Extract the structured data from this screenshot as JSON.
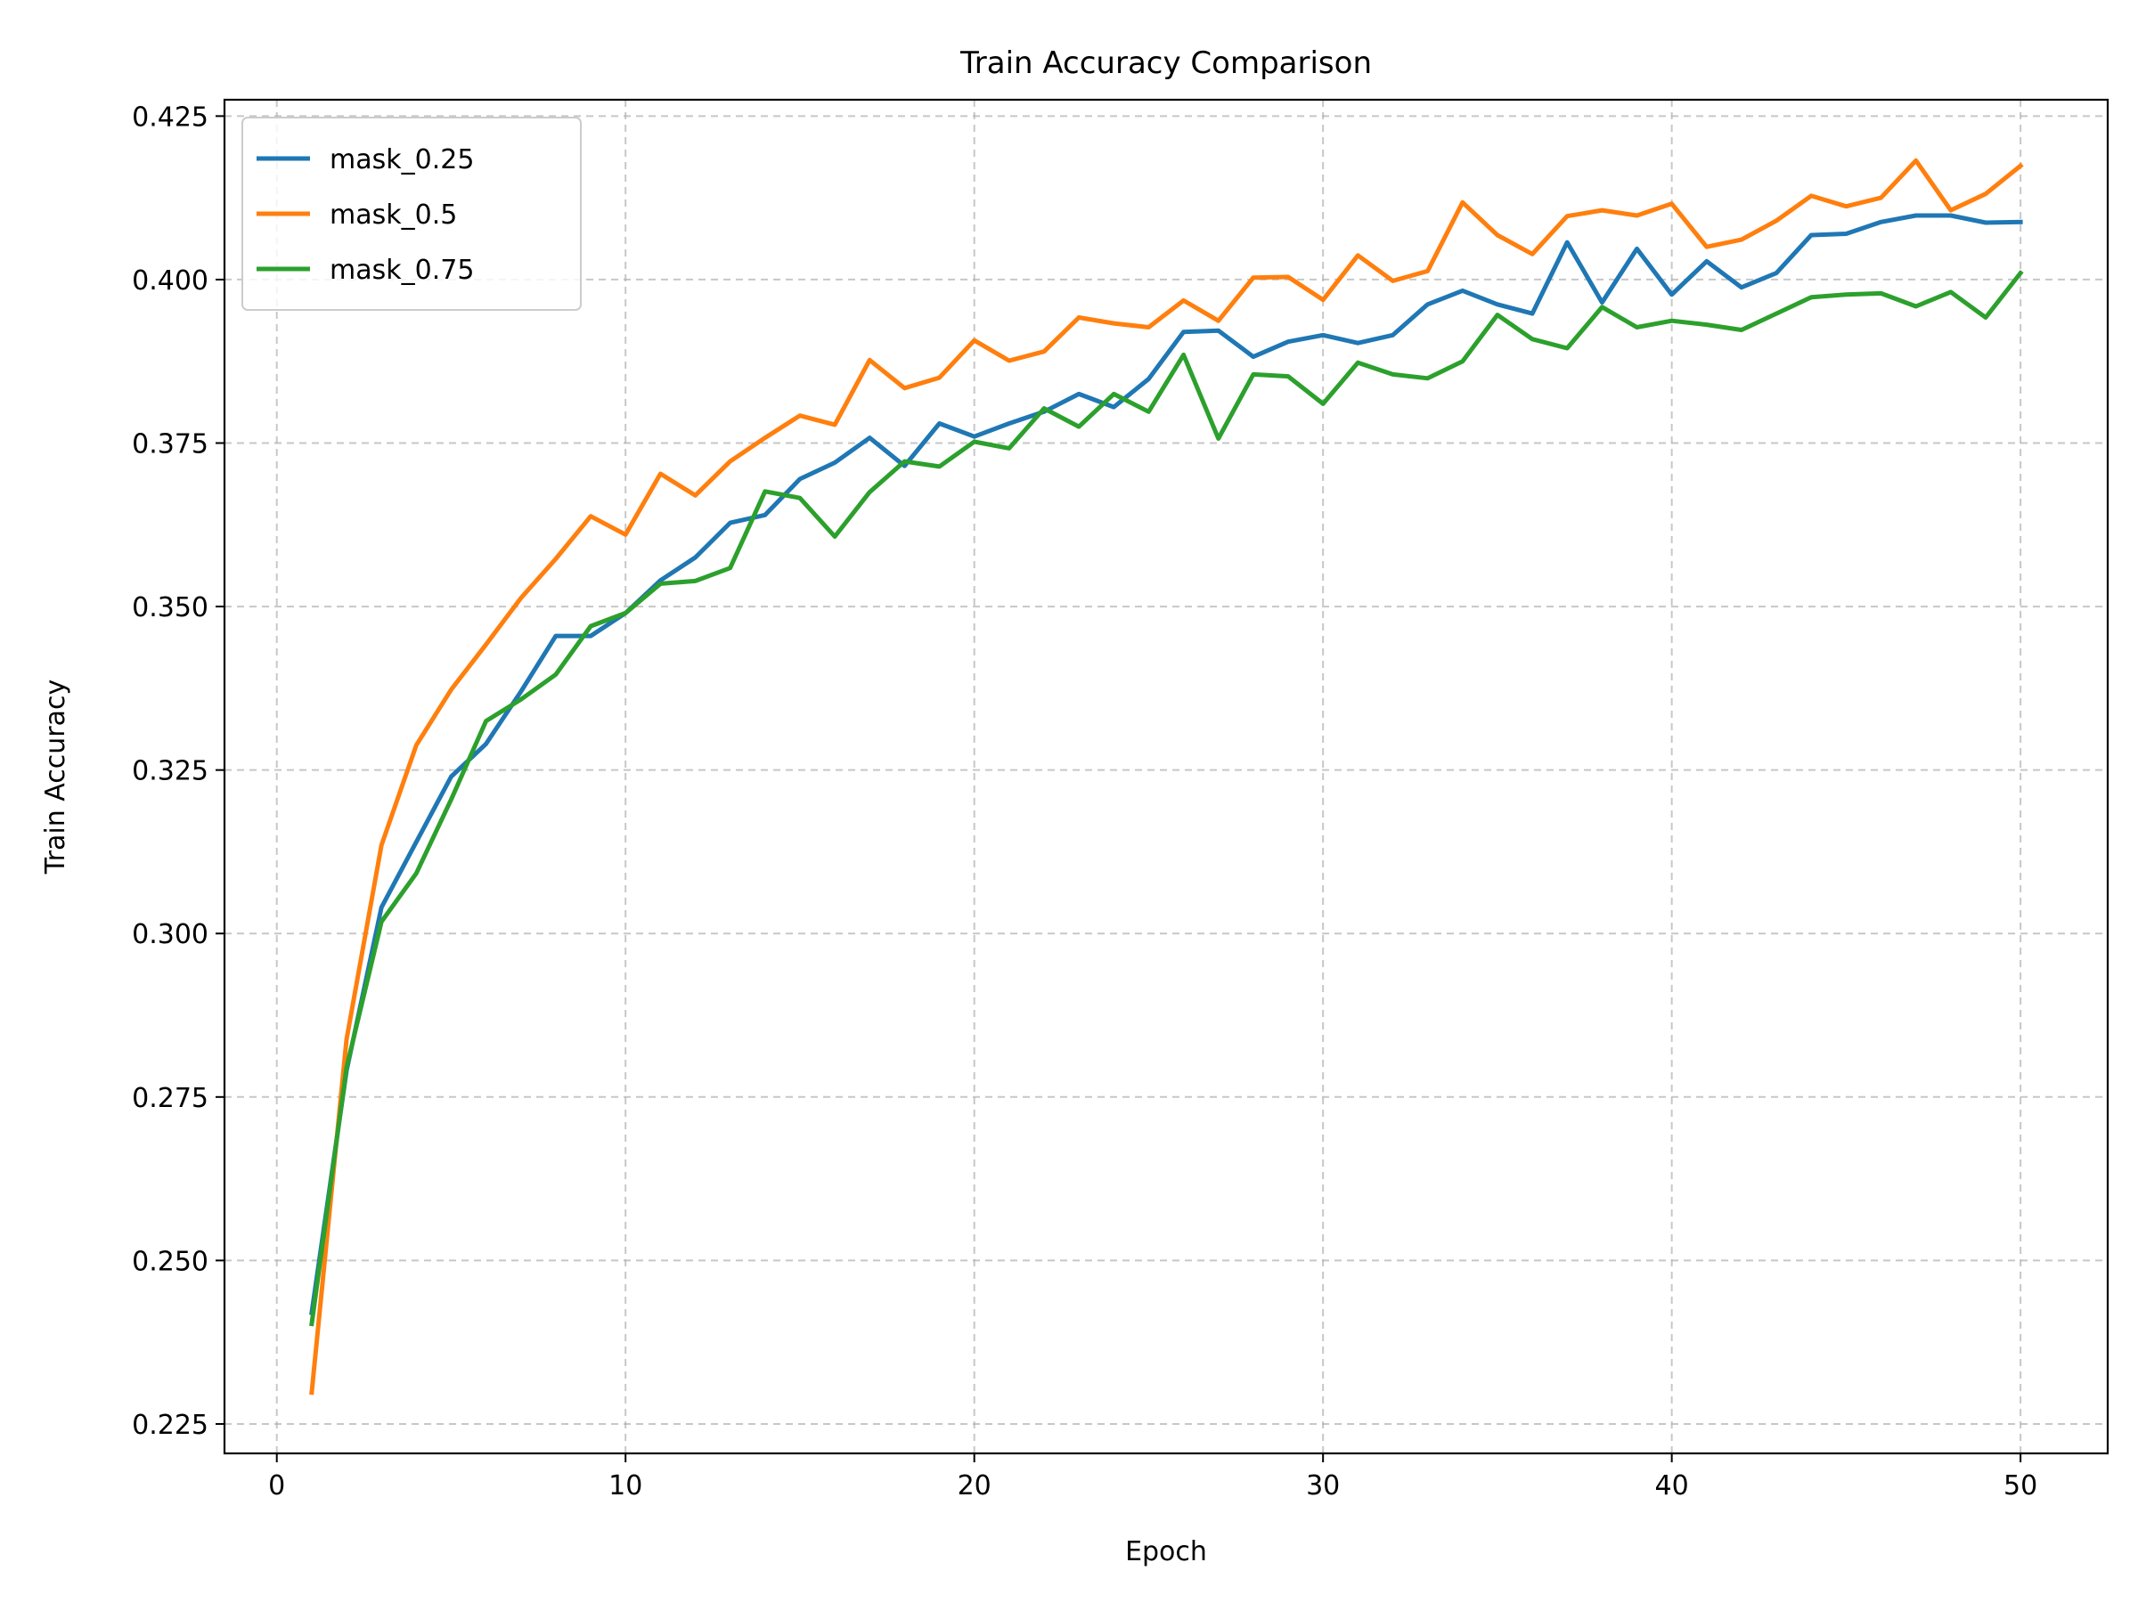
{
  "chart_data": {
    "type": "line",
    "title": "Train Accuracy Comparison",
    "xlabel": "Epoch",
    "ylabel": "Train Accuracy",
    "xlim": [
      -1.5,
      52.5
    ],
    "ylim": [
      0.2205,
      0.4275
    ],
    "xticks": [
      0,
      10,
      20,
      30,
      40,
      50
    ],
    "xtick_labels": [
      "0",
      "10",
      "20",
      "30",
      "40",
      "50"
    ],
    "yticks": [
      0.225,
      0.25,
      0.275,
      0.3,
      0.325,
      0.35,
      0.375,
      0.4,
      0.425
    ],
    "ytick_labels": [
      "0.225",
      "0.250",
      "0.275",
      "0.300",
      "0.325",
      "0.350",
      "0.375",
      "0.400",
      "0.425"
    ],
    "grid": true,
    "legend_position": "top-left",
    "x": [
      1,
      2,
      3,
      4,
      5,
      6,
      7,
      8,
      9,
      10,
      11,
      12,
      13,
      14,
      15,
      16,
      17,
      18,
      19,
      20,
      21,
      22,
      23,
      24,
      25,
      26,
      27,
      28,
      29,
      30,
      31,
      32,
      33,
      34,
      35,
      36,
      37,
      38,
      39,
      40,
      41,
      42,
      43,
      44,
      45,
      46,
      47,
      48,
      49,
      50
    ],
    "series": [
      {
        "name": "mask_0.25",
        "color": "#1f77b4",
        "values": [
          0.242,
          0.279,
          0.304,
          0.314,
          0.324,
          0.329,
          0.337,
          0.3455,
          0.3455,
          0.349,
          0.354,
          0.3575,
          0.3628,
          0.364,
          0.3695,
          0.372,
          0.3758,
          0.3715,
          0.378,
          0.376,
          0.378,
          0.3798,
          0.3825,
          0.3805,
          0.3848,
          0.392,
          0.3922,
          0.3882,
          0.3905,
          0.3915,
          0.3903,
          0.3915,
          0.3962,
          0.3983,
          0.3962,
          0.3948,
          0.4057,
          0.3965,
          0.4047,
          0.3977,
          0.4028,
          0.3988,
          0.401,
          0.4068,
          0.407,
          0.4088,
          0.4098,
          0.4098,
          0.4087,
          0.4088
        ]
      },
      {
        "name": "mask_0.5",
        "color": "#ff7f0e",
        "values": [
          0.2298,
          0.2838,
          0.3135,
          0.3288,
          0.3373,
          0.3442,
          0.3513,
          0.3573,
          0.3638,
          0.361,
          0.3703,
          0.367,
          0.3722,
          0.3758,
          0.3792,
          0.3778,
          0.3877,
          0.3834,
          0.385,
          0.3907,
          0.3876,
          0.389,
          0.3942,
          0.3933,
          0.3927,
          0.3968,
          0.3937,
          0.4003,
          0.4004,
          0.3969,
          0.4037,
          0.3998,
          0.4013,
          0.4118,
          0.4068,
          0.4039,
          0.4097,
          0.4106,
          0.4098,
          0.4116,
          0.405,
          0.4061,
          0.409,
          0.4128,
          0.4112,
          0.4125,
          0.4182,
          0.4106,
          0.4131,
          0.4174
        ]
      },
      {
        "name": "mask_0.75",
        "color": "#2ca02c",
        "values": [
          0.2403,
          0.2795,
          0.3018,
          0.3092,
          0.3205,
          0.3325,
          0.3358,
          0.3396,
          0.347,
          0.349,
          0.3535,
          0.3539,
          0.3559,
          0.3676,
          0.3666,
          0.3607,
          0.3675,
          0.3722,
          0.3714,
          0.3752,
          0.3742,
          0.3803,
          0.3775,
          0.3825,
          0.3798,
          0.3885,
          0.3757,
          0.3855,
          0.3852,
          0.381,
          0.3873,
          0.3855,
          0.3849,
          0.3875,
          0.3946,
          0.3909,
          0.3895,
          0.3958,
          0.3927,
          0.3937,
          0.3931,
          0.3923,
          0.3948,
          0.3973,
          0.3977,
          0.3979,
          0.3959,
          0.3981,
          0.3942,
          0.401
        ]
      }
    ]
  }
}
